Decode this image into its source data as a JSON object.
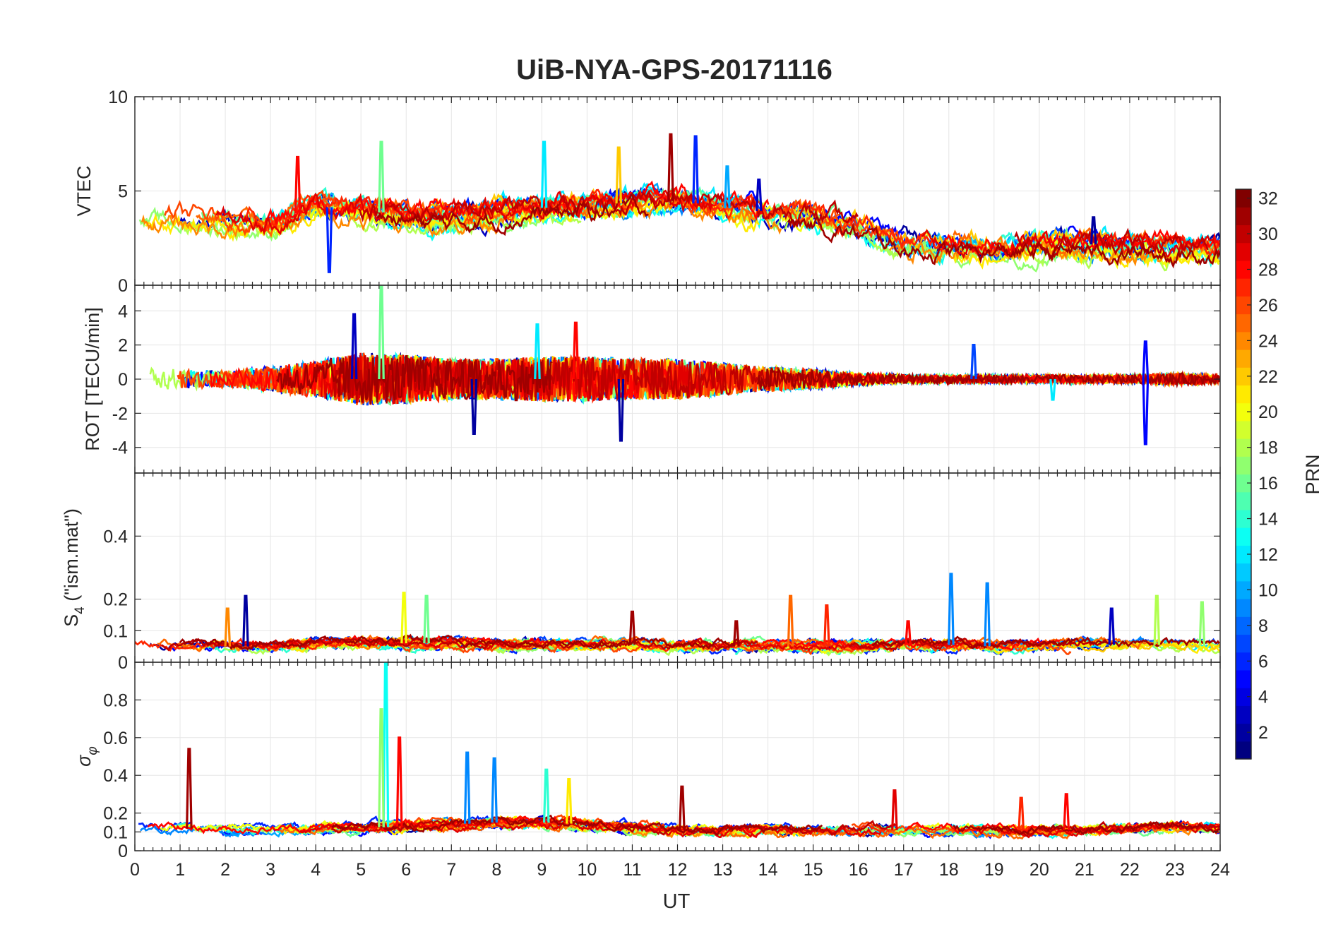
{
  "chart_data": {
    "type": "line",
    "title": "UiB-NYA-GPS-20171116",
    "xlabel": "UT",
    "xlim": [
      0,
      24
    ],
    "xticks": [
      "0",
      "1",
      "2",
      "3",
      "4",
      "5",
      "6",
      "7",
      "8",
      "9",
      "10",
      "11",
      "12",
      "13",
      "14",
      "15",
      "16",
      "17",
      "18",
      "19",
      "20",
      "21",
      "22",
      "23",
      "24"
    ],
    "panels": [
      {
        "id": "vtec",
        "ylabel": "VTEC",
        "ylim": [
          0,
          10
        ],
        "yticks": [
          0,
          5,
          10
        ],
        "yticklabels": [
          "0",
          "5",
          "10"
        ],
        "profile": {
          "x": [
            0,
            1,
            2,
            3,
            4,
            5,
            6,
            7,
            8,
            9,
            10,
            11,
            12,
            13,
            14,
            15,
            16,
            17,
            18,
            19,
            20,
            21,
            22,
            23,
            24
          ],
          "y": [
            3.6,
            3.6,
            3.4,
            3.2,
            4.2,
            4.0,
            3.7,
            3.6,
            3.9,
            4.1,
            4.2,
            4.4,
            4.5,
            4.1,
            3.9,
            3.6,
            3.0,
            2.3,
            2.1,
            2.0,
            2.1,
            2.2,
            2.0,
            2.0,
            2.0
          ]
        },
        "noise": 0.6,
        "spikes": [
          {
            "x": 3.6,
            "y": 6.8,
            "prn": 28
          },
          {
            "x": 4.3,
            "y": 0.7,
            "prn": 6
          },
          {
            "x": 5.45,
            "y": 7.6,
            "prn": 16
          },
          {
            "x": 9.05,
            "y": 7.6,
            "prn": 12
          },
          {
            "x": 11.85,
            "y": 8.0,
            "prn": 31
          },
          {
            "x": 12.4,
            "y": 7.9,
            "prn": 6
          },
          {
            "x": 10.7,
            "y": 7.3,
            "prn": 22
          },
          {
            "x": 13.1,
            "y": 6.3,
            "prn": 10
          },
          {
            "x": 13.8,
            "y": 5.6,
            "prn": 3
          },
          {
            "x": 21.2,
            "y": 3.6,
            "prn": 2
          }
        ]
      },
      {
        "id": "rot",
        "ylabel": "ROT [TECU/min]",
        "ylim": [
          -5.5,
          5.5
        ],
        "yticks": [
          -4,
          -2,
          0,
          2,
          4
        ],
        "yticklabels": [
          "-4",
          "-2",
          "0",
          "2",
          "4"
        ],
        "profile": {
          "x": [
            0,
            1,
            2,
            3,
            4,
            5,
            6,
            7,
            8,
            9,
            10,
            11,
            12,
            13,
            14,
            15,
            16,
            17,
            18,
            19,
            20,
            21,
            22,
            23,
            24
          ],
          "y": [
            0,
            0,
            0,
            0,
            0,
            0,
            0,
            0,
            0,
            0,
            0,
            0,
            0,
            0,
            0,
            0,
            0,
            0,
            0,
            0,
            0,
            0,
            0,
            0,
            0
          ]
        },
        "noise_env": {
          "x": [
            0,
            1,
            2,
            3,
            4,
            5,
            6,
            7,
            8,
            9,
            10,
            11,
            12,
            13,
            14,
            15,
            16,
            17,
            18,
            19,
            20,
            21,
            22,
            23,
            24
          ],
          "y": [
            0.6,
            0.5,
            0.4,
            0.6,
            0.9,
            1.3,
            1.2,
            1.0,
            1.0,
            1.1,
            1.1,
            1.0,
            1.0,
            0.8,
            0.6,
            0.5,
            0.3,
            0.2,
            0.2,
            0.2,
            0.2,
            0.2,
            0.2,
            0.3,
            0.2
          ]
        },
        "spikes": [
          {
            "x": 4.85,
            "y": 3.8,
            "prn": 3
          },
          {
            "x": 5.45,
            "y": 5.4,
            "prn": 16
          },
          {
            "x": 10.75,
            "y": -3.6,
            "prn": 2
          },
          {
            "x": 22.35,
            "y": -3.8,
            "prn": 5
          },
          {
            "x": 22.35,
            "y": 2.2,
            "prn": 5
          },
          {
            "x": 18.55,
            "y": 2.0,
            "prn": 7
          },
          {
            "x": 7.5,
            "y": -3.2,
            "prn": 2
          },
          {
            "x": 9.75,
            "y": 3.3,
            "prn": 28
          },
          {
            "x": 8.9,
            "y": 3.2,
            "prn": 12
          },
          {
            "x": 20.3,
            "y": -1.2,
            "prn": 12
          }
        ]
      },
      {
        "id": "s4",
        "ylabel": "S4 (\"ism.mat\")",
        "ylabel_main": "S",
        "ylabel_sub": "4",
        "ylabel_rest": " (\"ism.mat\")",
        "ylim": [
          0,
          0.6
        ],
        "yticks": [
          0,
          0.1,
          0.2,
          0.4
        ],
        "yticklabels": [
          "0",
          "0.1",
          "0.2",
          "0.4"
        ],
        "profile": {
          "x": [
            0,
            1,
            2,
            3,
            4,
            5,
            6,
            7,
            8,
            9,
            10,
            11,
            12,
            13,
            14,
            15,
            16,
            17,
            18,
            19,
            20,
            21,
            22,
            23,
            24
          ],
          "y": [
            0.055,
            0.05,
            0.05,
            0.05,
            0.055,
            0.06,
            0.06,
            0.06,
            0.055,
            0.055,
            0.055,
            0.055,
            0.05,
            0.05,
            0.05,
            0.05,
            0.05,
            0.055,
            0.055,
            0.05,
            0.05,
            0.055,
            0.055,
            0.055,
            0.05
          ]
        },
        "noise": 0.015,
        "spikes": [
          {
            "x": 2.45,
            "y": 0.21,
            "prn": 2
          },
          {
            "x": 2.05,
            "y": 0.17,
            "prn": 24
          },
          {
            "x": 5.95,
            "y": 0.22,
            "prn": 20
          },
          {
            "x": 6.45,
            "y": 0.21,
            "prn": 16
          },
          {
            "x": 14.5,
            "y": 0.21,
            "prn": 25
          },
          {
            "x": 15.3,
            "y": 0.18,
            "prn": 27
          },
          {
            "x": 18.05,
            "y": 0.28,
            "prn": 9
          },
          {
            "x": 18.85,
            "y": 0.25,
            "prn": 9
          },
          {
            "x": 22.6,
            "y": 0.21,
            "prn": 18
          },
          {
            "x": 23.6,
            "y": 0.19,
            "prn": 17
          },
          {
            "x": 11.0,
            "y": 0.16,
            "prn": 31
          },
          {
            "x": 13.3,
            "y": 0.13,
            "prn": 31
          },
          {
            "x": 21.6,
            "y": 0.17,
            "prn": 3
          },
          {
            "x": 17.1,
            "y": 0.13,
            "prn": 28
          }
        ]
      },
      {
        "id": "sigma",
        "ylabel": "σφ",
        "ylabel_main": "σ",
        "ylabel_sub": "φ",
        "ylim": [
          0,
          1
        ],
        "yticks": [
          0,
          0.1,
          0.2,
          0.4,
          0.6,
          0.8
        ],
        "yticklabels": [
          "0",
          "0.1",
          "0.2",
          "0.4",
          "0.6",
          "0.8"
        ],
        "profile": {
          "x": [
            0,
            1,
            2,
            3,
            4,
            5,
            6,
            7,
            8,
            9,
            10,
            11,
            12,
            13,
            14,
            15,
            16,
            17,
            18,
            19,
            20,
            21,
            22,
            23,
            24
          ],
          "y": [
            0.12,
            0.12,
            0.11,
            0.11,
            0.12,
            0.12,
            0.13,
            0.14,
            0.15,
            0.15,
            0.14,
            0.12,
            0.11,
            0.11,
            0.11,
            0.11,
            0.11,
            0.11,
            0.11,
            0.11,
            0.11,
            0.11,
            0.12,
            0.13,
            0.12
          ]
        },
        "noise": 0.025,
        "spikes": [
          {
            "x": 1.2,
            "y": 0.54,
            "prn": 31
          },
          {
            "x": 5.55,
            "y": 1.0,
            "prn": 13
          },
          {
            "x": 5.45,
            "y": 0.75,
            "prn": 17
          },
          {
            "x": 5.85,
            "y": 0.6,
            "prn": 28
          },
          {
            "x": 7.35,
            "y": 0.52,
            "prn": 9
          },
          {
            "x": 7.95,
            "y": 0.49,
            "prn": 9
          },
          {
            "x": 9.1,
            "y": 0.43,
            "prn": 14
          },
          {
            "x": 9.6,
            "y": 0.38,
            "prn": 21
          },
          {
            "x": 16.8,
            "y": 0.32,
            "prn": 29
          },
          {
            "x": 19.6,
            "y": 0.28,
            "prn": 27
          },
          {
            "x": 20.6,
            "y": 0.3,
            "prn": 28
          },
          {
            "x": 12.1,
            "y": 0.34,
            "prn": 31
          }
        ]
      }
    ],
    "colorbar": {
      "label": "PRN",
      "colormap": "jet",
      "range": [
        1,
        32
      ],
      "ticks": [
        2,
        4,
        6,
        8,
        10,
        12,
        14,
        16,
        18,
        20,
        22,
        24,
        26,
        28,
        30,
        32
      ],
      "ticklabels": [
        "2",
        "4",
        "6",
        "8",
        "10",
        "12",
        "14",
        "16",
        "18",
        "20",
        "22",
        "24",
        "26",
        "28",
        "30",
        "32"
      ]
    },
    "series_prns": [
      2,
      3,
      5,
      6,
      7,
      9,
      10,
      12,
      13,
      14,
      16,
      17,
      18,
      20,
      21,
      22,
      24,
      25,
      26,
      27,
      28,
      29,
      30,
      31
    ]
  }
}
